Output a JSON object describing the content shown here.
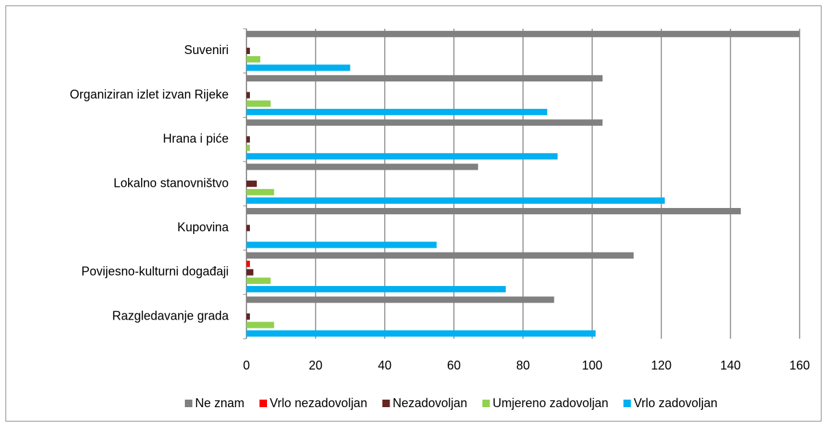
{
  "chart_data": {
    "type": "bar",
    "orientation": "horizontal",
    "categories": [
      "Suveniri",
      "Organiziran izlet izvan Rijeke",
      "Hrana i piće",
      "Lokalno stanovništvo",
      "Kupovina",
      "Povijesno-kulturni događaji",
      "Razgledavanje grada"
    ],
    "series": [
      {
        "name": "Ne znam",
        "color": "#808080",
        "values": [
          160,
          103,
          103,
          67,
          143,
          112,
          89
        ]
      },
      {
        "name": "Vrlo nezadovoljan",
        "color": "#ff0000",
        "values": [
          0,
          0,
          0,
          0,
          0,
          1,
          0
        ]
      },
      {
        "name": "Nezadovoljan",
        "color": "#632523",
        "values": [
          1,
          1,
          1,
          3,
          1,
          2,
          1
        ]
      },
      {
        "name": "Umjereno zadovoljan",
        "color": "#92d050",
        "values": [
          4,
          7,
          1,
          8,
          0,
          7,
          8
        ]
      },
      {
        "name": "Vrlo zadovoljan",
        "color": "#00b0f0",
        "values": [
          30,
          87,
          90,
          121,
          55,
          75,
          101
        ]
      }
    ],
    "xlim": [
      0,
      160
    ],
    "xticks": [
      0,
      20,
      40,
      60,
      80,
      100,
      120,
      140,
      160
    ],
    "grid": true,
    "legend": "bottom"
  }
}
